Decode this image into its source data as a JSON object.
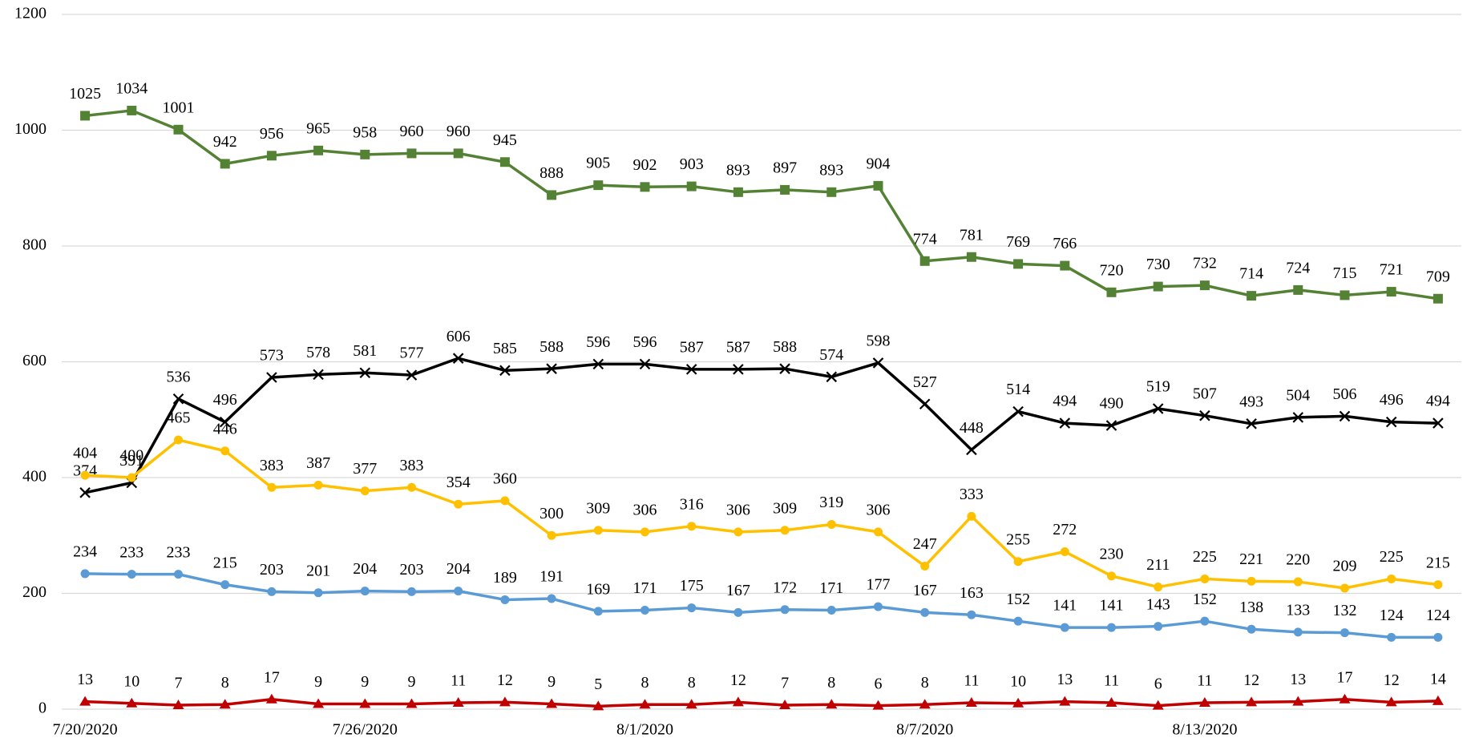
{
  "chart_data": {
    "type": "line",
    "categories": [
      "7/20/2020",
      null,
      null,
      null,
      null,
      null,
      "7/26/2020",
      null,
      null,
      null,
      null,
      null,
      "8/1/2020",
      null,
      null,
      null,
      null,
      null,
      "8/7/2020",
      null,
      null,
      null,
      null,
      null,
      "8/13/2020",
      null,
      null,
      null,
      null,
      null
    ],
    "series": [
      {
        "color": "#548235",
        "marker": "square",
        "values": [
          1025,
          1034,
          1001,
          942,
          956,
          965,
          958,
          960,
          960,
          945,
          888,
          905,
          902,
          903,
          893,
          897,
          893,
          904,
          774,
          781,
          769,
          766,
          720,
          730,
          732,
          714,
          724,
          715,
          721,
          709
        ]
      },
      {
        "color": "#000000",
        "marker": "x",
        "values": [
          374,
          391,
          536,
          496,
          573,
          578,
          581,
          577,
          606,
          585,
          588,
          596,
          596,
          587,
          587,
          588,
          574,
          598,
          527,
          448,
          514,
          494,
          490,
          519,
          507,
          493,
          504,
          506,
          496,
          494
        ]
      },
      {
        "color": "#ffc000",
        "marker": "circle",
        "values": [
          404,
          400,
          465,
          446,
          383,
          387,
          377,
          383,
          354,
          360,
          300,
          309,
          306,
          316,
          306,
          309,
          319,
          306,
          247,
          333,
          255,
          272,
          230,
          211,
          225,
          221,
          220,
          209,
          225,
          215
        ]
      },
      {
        "color": "#5b9bd5",
        "marker": "circle",
        "values": [
          234,
          233,
          233,
          215,
          203,
          201,
          204,
          203,
          204,
          189,
          191,
          169,
          171,
          175,
          167,
          172,
          171,
          177,
          167,
          163,
          152,
          141,
          141,
          143,
          152,
          138,
          133,
          132,
          124,
          124
        ]
      },
      {
        "color": "#c00000",
        "marker": "triangle",
        "values": [
          13,
          10,
          7,
          8,
          17,
          9,
          9,
          9,
          11,
          12,
          9,
          5,
          8,
          8,
          12,
          7,
          8,
          6,
          8,
          11,
          10,
          13,
          11,
          6,
          11,
          12,
          13,
          17,
          12,
          14
        ]
      }
    ],
    "ylim": [
      0,
      1200
    ],
    "yticks": [
      0,
      200,
      400,
      600,
      800,
      1000,
      1200
    ],
    "grid": true
  }
}
